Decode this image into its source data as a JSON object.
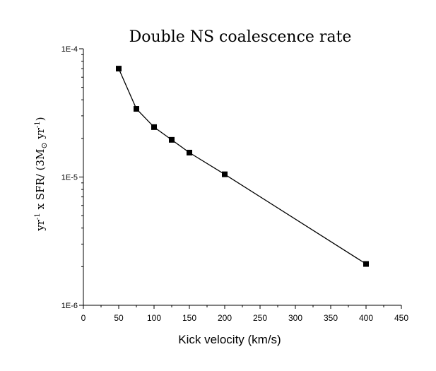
{
  "chart_data": {
    "type": "line",
    "title": "Double NS coalescence rate",
    "xlabel": "Kick velocity (km/s)",
    "ylabel": {
      "part1": "yr",
      "sup1": "-1",
      "part2": " x  SFR/ (3M",
      "sub_sun": "⊙",
      "part3": " yr",
      "sup2": "-1",
      "part4": ")"
    },
    "xlim": [
      0,
      450
    ],
    "ylim": [
      1e-06,
      0.0001
    ],
    "yscale": "log",
    "x_ticks": [
      "0",
      "50",
      "100",
      "150",
      "200",
      "250",
      "300",
      "350",
      "400",
      "450"
    ],
    "y_ticks": [
      "1E-4",
      "1E-5",
      "1E-6"
    ],
    "grid": false,
    "series": [
      {
        "x": [
          50,
          75,
          100,
          125,
          150,
          200,
          400
        ],
        "y": [
          7e-05,
          3.4e-05,
          2.45e-05,
          1.95e-05,
          1.55e-05,
          1.05e-05,
          2.1e-06
        ],
        "marker": "square",
        "color": "#000000"
      }
    ]
  }
}
